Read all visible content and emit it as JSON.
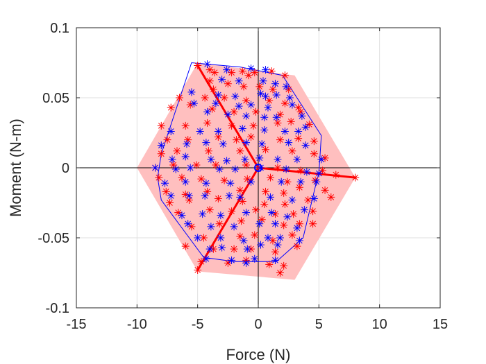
{
  "chart_data": {
    "type": "scatter",
    "title": "",
    "xlabel": "Force (N)",
    "ylabel": "Moment (N-m)",
    "xlim": [
      -15,
      15
    ],
    "ylim": [
      -0.1,
      0.1
    ],
    "xticks": [
      -15,
      -10,
      -5,
      0,
      5,
      10,
      15
    ],
    "xtick_labels": [
      "-15",
      "-10",
      "-5",
      "0",
      "5",
      "10",
      "15"
    ],
    "yticks": [
      -0.1,
      -0.05,
      0,
      0.05,
      0.1
    ],
    "ytick_labels": [
      "-0.1",
      "-0.05",
      "0",
      "0.05",
      "0.1"
    ],
    "grid": true,
    "legend": "none",
    "colors": {
      "fill": "#ffbfbf",
      "red": "#ff0000",
      "blue": "#0000ff",
      "axes": "#262626",
      "zero_lines": "#000000",
      "grid": "#dfdfdf"
    },
    "shaded_region": [
      [
        -10,
        0
      ],
      [
        -5,
        0.075
      ],
      [
        3,
        0.066
      ],
      [
        8,
        -0.007
      ],
      [
        3,
        -0.08
      ],
      [
        -5,
        -0.074
      ]
    ],
    "blue_boundary": [
      [
        -5.5,
        0.075
      ],
      [
        -1.5,
        0.072
      ],
      [
        2,
        0.066
      ],
      [
        5.2,
        0.023
      ],
      [
        5,
        -0.004
      ],
      [
        4.8,
        -0.01
      ],
      [
        3.7,
        -0.05
      ],
      [
        1.5,
        -0.067
      ],
      [
        -2,
        -0.067
      ],
      [
        -4.5,
        -0.064
      ],
      [
        -8,
        -0.023
      ],
      [
        -8.3,
        -0.007
      ],
      [
        -8,
        0.01
      ]
    ],
    "red_lines": [
      {
        "x": [
          0,
          -5
        ],
        "y": [
          0,
          0.073
        ]
      },
      {
        "x": [
          0,
          8
        ],
        "y": [
          0,
          -0.007
        ]
      },
      {
        "x": [
          0,
          -5
        ],
        "y": [
          0,
          -0.073
        ]
      }
    ],
    "series": [
      {
        "color": "red",
        "marker": "*",
        "points": [
          [
            -5,
            0.073
          ],
          [
            8,
            -0.007
          ],
          [
            -5,
            -0.073
          ],
          [
            -4,
            0.07
          ],
          [
            -3.6,
            0.068
          ],
          [
            -2.2,
            0.068
          ],
          [
            -1.3,
            0.069
          ],
          [
            -0.3,
            0.068
          ],
          [
            -0.8,
            0.066
          ],
          [
            1.1,
            0.069
          ],
          [
            2.2,
            0.066
          ],
          [
            -4,
            0.062
          ],
          [
            -2.5,
            0.06
          ],
          [
            -1.2,
            0.058
          ],
          [
            0.1,
            0.058
          ],
          [
            1.2,
            0.056
          ],
          [
            2.5,
            0.056
          ],
          [
            -3.7,
            0.056
          ],
          [
            -6.5,
            0.05
          ],
          [
            -4.4,
            0.05
          ],
          [
            -2.8,
            0.05
          ],
          [
            -1,
            0.048
          ],
          [
            0.9,
            0.048
          ],
          [
            2.2,
            0.046
          ],
          [
            3.3,
            0.043
          ],
          [
            -7.2,
            0.043
          ],
          [
            -5.6,
            0.045
          ],
          [
            -3.8,
            0.042
          ],
          [
            -2,
            0.04
          ],
          [
            -0.2,
            0.04
          ],
          [
            1.8,
            0.038
          ],
          [
            3.5,
            0.04
          ],
          [
            -8,
            0.03
          ],
          [
            -6,
            0.03
          ],
          [
            -4.2,
            0.032
          ],
          [
            -2.2,
            0.03
          ],
          [
            -0.4,
            0.03
          ],
          [
            1.6,
            0.032
          ],
          [
            2.7,
            0.033
          ],
          [
            4.2,
            0.031
          ],
          [
            -7.5,
            0.02
          ],
          [
            -5.8,
            0.02
          ],
          [
            -3.3,
            0.022
          ],
          [
            -1.8,
            0.02
          ],
          [
            -0.6,
            0.022
          ],
          [
            1.8,
            0.02
          ],
          [
            3.3,
            0.021
          ],
          [
            4.6,
            0.019
          ],
          [
            -8,
            0.01
          ],
          [
            -6.7,
            0.012
          ],
          [
            -4.1,
            0.012
          ],
          [
            -1.5,
            0.012
          ],
          [
            0.6,
            0.013
          ],
          [
            2.8,
            0.012
          ],
          [
            4.6,
            0.01
          ],
          [
            5.5,
            0.007
          ],
          [
            -8.5,
            0
          ],
          [
            -7,
            0.002
          ],
          [
            -5.1,
            0.002
          ],
          [
            -3.5,
            0.002
          ],
          [
            -1,
            0.002
          ],
          [
            1.6,
            0
          ],
          [
            3.5,
            -0.002
          ],
          [
            5.3,
            -0.002
          ],
          [
            6.4,
            -0.005
          ],
          [
            -8.2,
            -0.007
          ],
          [
            -6.3,
            -0.007
          ],
          [
            -4.7,
            -0.008
          ],
          [
            -2.8,
            -0.009
          ],
          [
            -0.9,
            -0.008
          ],
          [
            1,
            -0.007
          ],
          [
            2.4,
            -0.01
          ],
          [
            4.7,
            -0.009
          ],
          [
            -7.6,
            -0.017
          ],
          [
            -6,
            -0.019
          ],
          [
            -4.2,
            -0.017
          ],
          [
            -1.5,
            -0.016
          ],
          [
            0.6,
            -0.017
          ],
          [
            2.1,
            -0.018
          ],
          [
            3.4,
            -0.014
          ],
          [
            5.5,
            -0.016
          ],
          [
            -7.3,
            -0.025
          ],
          [
            -5.7,
            -0.023
          ],
          [
            -3.3,
            -0.022
          ],
          [
            -1.3,
            -0.024
          ],
          [
            0.5,
            -0.026
          ],
          [
            2.2,
            -0.026
          ],
          [
            4.1,
            -0.023
          ],
          [
            6,
            -0.021
          ],
          [
            -6.6,
            -0.032
          ],
          [
            -4,
            -0.03
          ],
          [
            -2.2,
            -0.031
          ],
          [
            -0.2,
            -0.03
          ],
          [
            1.4,
            -0.033
          ],
          [
            2.9,
            -0.033
          ],
          [
            4.5,
            -0.031
          ],
          [
            -5.5,
            -0.042
          ],
          [
            -3.2,
            -0.04
          ],
          [
            -1.4,
            -0.038
          ],
          [
            0.3,
            -0.037
          ],
          [
            2.1,
            -0.041
          ],
          [
            3.4,
            -0.04
          ],
          [
            4.5,
            -0.04
          ],
          [
            -4.5,
            -0.05
          ],
          [
            -1.5,
            -0.049
          ],
          [
            -0.3,
            -0.048
          ],
          [
            1.2,
            -0.052
          ],
          [
            2.8,
            -0.048
          ],
          [
            -6,
            -0.056
          ],
          [
            -3.7,
            -0.058
          ],
          [
            -2,
            -0.058
          ],
          [
            -0.6,
            -0.058
          ],
          [
            1.4,
            -0.06
          ],
          [
            3.2,
            -0.056
          ],
          [
            -4.7,
            -0.067
          ],
          [
            -2.5,
            -0.068
          ],
          [
            -1,
            -0.066
          ],
          [
            0.9,
            -0.069
          ],
          [
            2.1,
            -0.07
          ],
          [
            1.8,
            -0.075
          ]
        ]
      },
      {
        "color": "blue",
        "marker": "*",
        "points": [
          [
            -4.2,
            0.074
          ],
          [
            -2.6,
            0.07
          ],
          [
            -0.6,
            0.071
          ],
          [
            0.6,
            0.07
          ],
          [
            -3,
            0.063
          ],
          [
            -1.6,
            0.062
          ],
          [
            0.4,
            0.062
          ],
          [
            1.4,
            0.06
          ],
          [
            2.3,
            0.058
          ],
          [
            -5.5,
            0.054
          ],
          [
            -3.3,
            0.052
          ],
          [
            -1.9,
            0.051
          ],
          [
            0.2,
            0.053
          ],
          [
            0.6,
            0.051
          ],
          [
            1.5,
            0.052
          ],
          [
            2.6,
            0.05
          ],
          [
            -5.3,
            0.046
          ],
          [
            -3.5,
            0.046
          ],
          [
            -1.6,
            0.044
          ],
          [
            -0.6,
            0.045
          ],
          [
            0.8,
            0.043
          ],
          [
            2.8,
            0.045
          ],
          [
            -4.2,
            0.04
          ],
          [
            -2.5,
            0.038
          ],
          [
            -1,
            0.037
          ],
          [
            0.5,
            0.036
          ],
          [
            1.5,
            0.036
          ],
          [
            3.6,
            0.037
          ],
          [
            -7.2,
            0.026
          ],
          [
            -4.8,
            0.026
          ],
          [
            -3.3,
            0.026
          ],
          [
            -1.3,
            0.028
          ],
          [
            0.5,
            0.027
          ],
          [
            2.2,
            0.026
          ],
          [
            3.3,
            0.026
          ],
          [
            3.9,
            0.029
          ],
          [
            -8,
            0.016
          ],
          [
            -5.9,
            0.017
          ],
          [
            -4.3,
            0.018
          ],
          [
            -2.9,
            0.017
          ],
          [
            -1,
            0.018
          ],
          [
            0.3,
            0.017
          ],
          [
            2.5,
            0.018
          ],
          [
            3.9,
            0.016
          ],
          [
            -7.1,
            0.006
          ],
          [
            -6,
            0.008
          ],
          [
            -3.9,
            0.006
          ],
          [
            -2.6,
            0.005
          ],
          [
            -1.1,
            0.006
          ],
          [
            0.1,
            0.007
          ],
          [
            1.6,
            0.006
          ],
          [
            3.2,
            0.006
          ],
          [
            5.2,
            0.006
          ],
          [
            -8.5,
            0
          ],
          [
            -6.8,
            -0.001
          ],
          [
            -5.6,
            0
          ],
          [
            -3.2,
            -0.001
          ],
          [
            -1.9,
            -0.001
          ],
          [
            0.2,
            0
          ],
          [
            2.3,
            -0.001
          ],
          [
            4,
            -0.003
          ],
          [
            5,
            -0.004
          ],
          [
            -7.7,
            -0.011
          ],
          [
            -6,
            -0.01
          ],
          [
            -4.3,
            -0.011
          ],
          [
            -2.3,
            -0.011
          ],
          [
            -0.6,
            -0.01
          ],
          [
            1.9,
            -0.01
          ],
          [
            3.5,
            -0.01
          ],
          [
            4.8,
            -0.01
          ],
          [
            -7.2,
            -0.02
          ],
          [
            -5.7,
            -0.02
          ],
          [
            -4.4,
            -0.02
          ],
          [
            -2.4,
            -0.02
          ],
          [
            -1.5,
            -0.021
          ],
          [
            1,
            -0.021
          ],
          [
            2.8,
            -0.023
          ],
          [
            4.6,
            -0.022
          ],
          [
            -6.3,
            -0.034
          ],
          [
            -4.6,
            -0.033
          ],
          [
            -3.1,
            -0.034
          ],
          [
            -1,
            -0.032
          ],
          [
            1.1,
            -0.032
          ],
          [
            2.4,
            -0.035
          ],
          [
            3.8,
            -0.03
          ],
          [
            -5.8,
            -0.04
          ],
          [
            -3.9,
            -0.042
          ],
          [
            -2,
            -0.042
          ],
          [
            0.1,
            -0.04
          ],
          [
            1.4,
            -0.04
          ],
          [
            3.2,
            -0.043
          ],
          [
            -5,
            -0.05
          ],
          [
            -3.1,
            -0.05
          ],
          [
            -1.2,
            -0.052
          ],
          [
            0.8,
            -0.05
          ],
          [
            1.8,
            -0.05
          ],
          [
            3.4,
            -0.052
          ],
          [
            -4,
            -0.058
          ],
          [
            -3,
            -0.057
          ],
          [
            -0.9,
            -0.058
          ],
          [
            0.2,
            -0.055
          ],
          [
            1.6,
            -0.055
          ],
          [
            -4.3,
            -0.065
          ],
          [
            -2.2,
            -0.066
          ],
          [
            -1,
            -0.068
          ],
          [
            -0.3,
            -0.065
          ],
          [
            1.4,
            -0.066
          ]
        ]
      }
    ]
  }
}
